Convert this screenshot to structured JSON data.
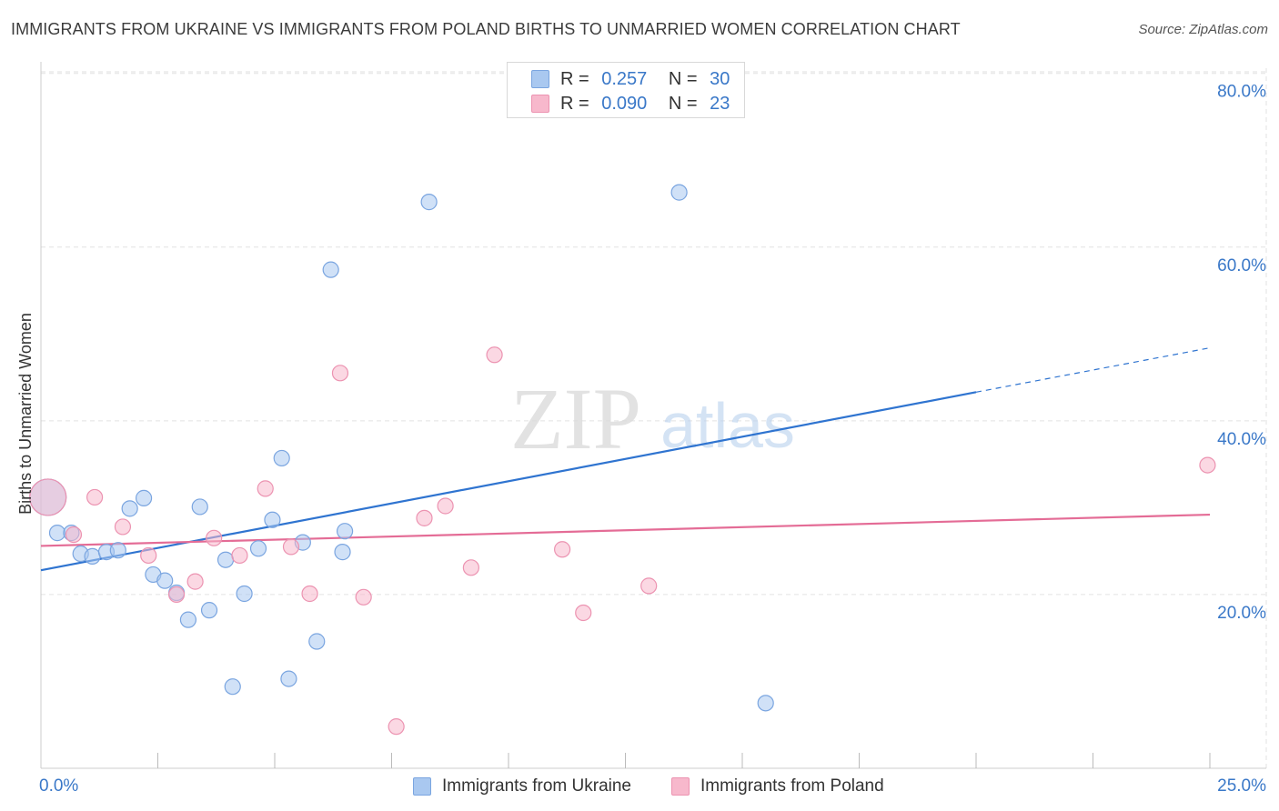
{
  "title": "IMMIGRANTS FROM UKRAINE VS IMMIGRANTS FROM POLAND BIRTHS TO UNMARRIED WOMEN CORRELATION CHART",
  "source": "Source: ZipAtlas.com",
  "watermark": {
    "zip": "ZIP",
    "atlas": "atlas"
  },
  "colors": {
    "ukraine_fill": "#a9c8f0",
    "ukraine_stroke": "#7aa5e0",
    "ukraine_line": "#2f74d0",
    "poland_fill": "#f7b8cc",
    "poland_stroke": "#ec93b1",
    "poland_line": "#e46c96",
    "axis_label": "#3a78c8",
    "grid": "#e2e2e2"
  },
  "stats_legend": {
    "ukraine": {
      "r_label": "R =",
      "r_value": "0.257",
      "n_label": "N =",
      "n_value": "30"
    },
    "poland": {
      "r_label": "R =",
      "r_value": "0.090",
      "n_label": "N =",
      "n_value": "23"
    }
  },
  "chart_data": {
    "type": "scatter",
    "title": "IMMIGRANTS FROM UKRAINE VS IMMIGRANTS FROM POLAND BIRTHS TO UNMARRIED WOMEN CORRELATION CHART",
    "xlabel": "",
    "ylabel": "Births to Unmarried Women",
    "xlim": [
      0,
      25
    ],
    "ylim": [
      0,
      80.6
    ],
    "x_tick_labels": {
      "min": "0.0%",
      "max": "25.0%"
    },
    "y_ticks": [
      {
        "value": 20,
        "label": "20.0%"
      },
      {
        "value": 40,
        "label": "40.0%"
      },
      {
        "value": 60,
        "label": "60.0%"
      },
      {
        "value": 80,
        "label": "80.0%"
      }
    ],
    "x_minor_ticks": [
      2.5,
      5,
      7.5,
      10,
      12.5,
      15,
      17.5,
      20,
      22.5,
      25
    ],
    "grid": true,
    "legend_position": "top-center",
    "series": [
      {
        "name": "Immigrants from Ukraine",
        "key": "ukraine",
        "points": [
          [
            0.15,
            31.2,
            "large"
          ],
          [
            0.35,
            27.1
          ],
          [
            0.65,
            27.1
          ],
          [
            0.85,
            24.7
          ],
          [
            1.1,
            24.4
          ],
          [
            1.4,
            24.9
          ],
          [
            1.65,
            25.1
          ],
          [
            1.9,
            29.9
          ],
          [
            2.2,
            31.1
          ],
          [
            2.4,
            22.3
          ],
          [
            2.65,
            21.6
          ],
          [
            2.9,
            20.2
          ],
          [
            3.15,
            17.1
          ],
          [
            3.4,
            30.1
          ],
          [
            3.6,
            18.2
          ],
          [
            3.95,
            24.0
          ],
          [
            4.1,
            9.4
          ],
          [
            4.35,
            20.1
          ],
          [
            4.65,
            25.3
          ],
          [
            4.95,
            28.6
          ],
          [
            5.15,
            35.7
          ],
          [
            5.3,
            10.3
          ],
          [
            5.6,
            26.0
          ],
          [
            5.9,
            14.6
          ],
          [
            6.2,
            57.4
          ],
          [
            6.5,
            27.3
          ],
          [
            6.45,
            24.9
          ],
          [
            8.3,
            65.2
          ],
          [
            13.65,
            66.3
          ],
          [
            15.5,
            7.5
          ]
        ],
        "trend": {
          "x0": 0,
          "y0": 22.8,
          "x1": 20,
          "y1": 43.3,
          "x_dash_end": 25,
          "y_dash_end": 48.4
        }
      },
      {
        "name": "Immigrants from Poland",
        "key": "poland",
        "points": [
          [
            0.15,
            31.2,
            "large"
          ],
          [
            0.7,
            26.9
          ],
          [
            1.15,
            31.2
          ],
          [
            1.75,
            27.8
          ],
          [
            2.3,
            24.5
          ],
          [
            2.9,
            20.0
          ],
          [
            3.3,
            21.5
          ],
          [
            3.7,
            26.5
          ],
          [
            4.25,
            24.5
          ],
          [
            4.8,
            32.2
          ],
          [
            5.35,
            25.5
          ],
          [
            5.75,
            20.1
          ],
          [
            6.4,
            45.5
          ],
          [
            6.9,
            19.7
          ],
          [
            7.6,
            4.8
          ],
          [
            8.2,
            28.8
          ],
          [
            8.65,
            30.2
          ],
          [
            9.2,
            23.1
          ],
          [
            9.7,
            47.6
          ],
          [
            11.15,
            25.2
          ],
          [
            11.6,
            17.9
          ],
          [
            13.0,
            21.0
          ],
          [
            24.95,
            34.9
          ]
        ],
        "trend": {
          "x0": 0,
          "y0": 25.6,
          "x1": 25,
          "y1": 29.2
        }
      }
    ]
  }
}
